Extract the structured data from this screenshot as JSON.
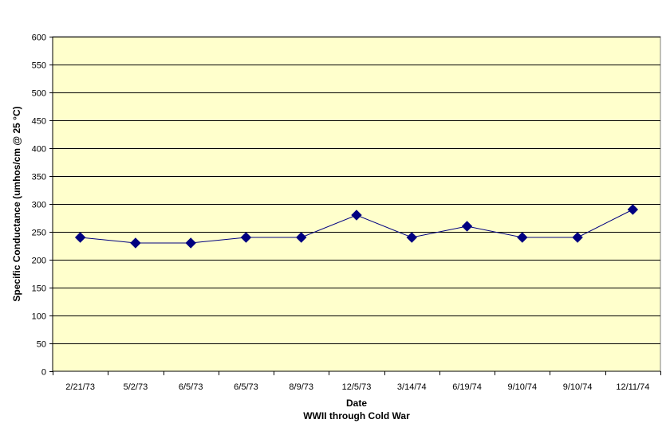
{
  "chart_data": {
    "type": "line",
    "categories": [
      "2/21/73",
      "5/2/73",
      "6/5/73",
      "6/5/73",
      "8/9/73",
      "12/5/73",
      "3/14/74",
      "6/19/74",
      "9/10/74",
      "9/10/74",
      "12/11/74"
    ],
    "series": [
      {
        "values": [
          240,
          230,
          230,
          240,
          240,
          280,
          240,
          260,
          240,
          240,
          290
        ]
      }
    ],
    "title": "",
    "xlabel": "Date",
    "xlabel2": "WWII through Cold War",
    "ylabel": "Specific Conductance (umhos/cm @ 25 °C)",
    "ylim": [
      0,
      600
    ],
    "ytick_step": 50,
    "grid": true,
    "legend": "none",
    "colors": {
      "plot_background": "#FFFFCC",
      "gridline": "#000000",
      "series_line": "#000080",
      "marker": "#000080"
    }
  }
}
